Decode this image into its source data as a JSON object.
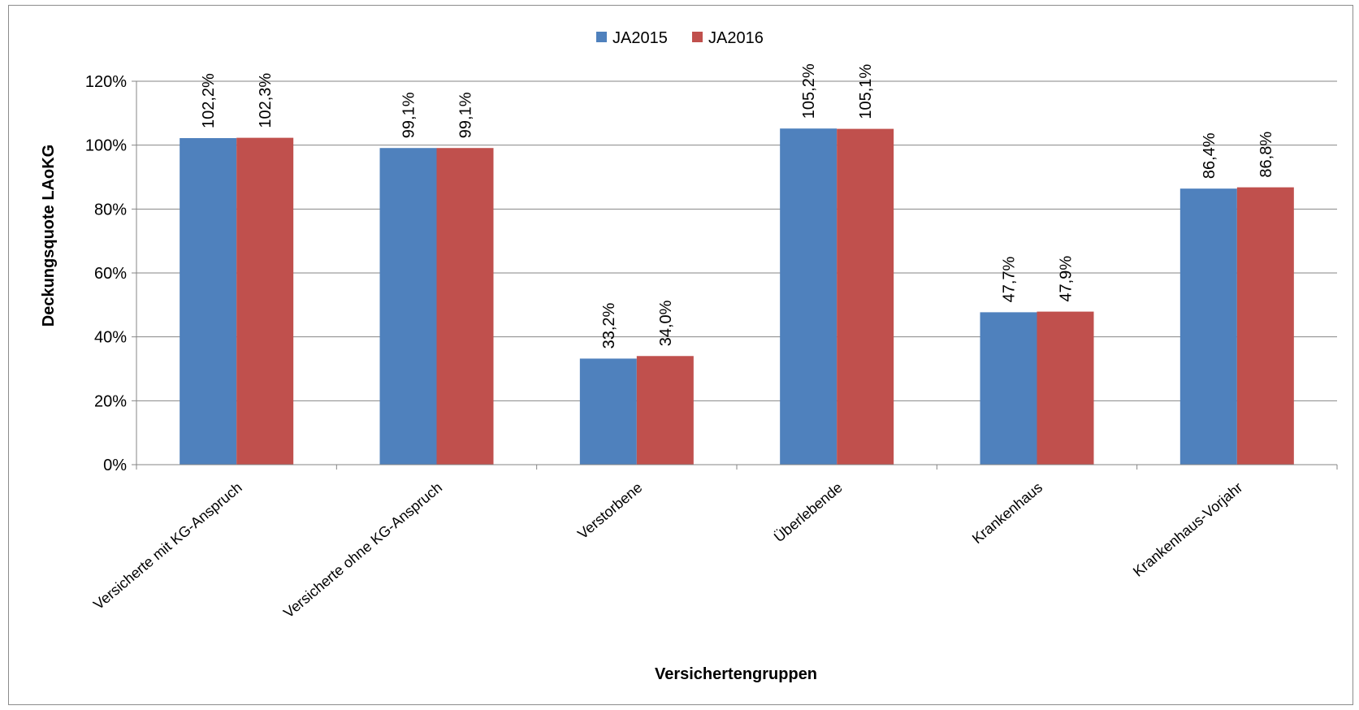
{
  "chart_data": {
    "type": "bar",
    "categories": [
      "Versicherte mit KG-Anspruch",
      "Versicherte ohne KG-Anspruch",
      "Verstorbene",
      "Überlebende",
      "Krankenhaus",
      "Krankenhaus-Vorjahr"
    ],
    "series": [
      {
        "name": "JA2015",
        "color": "#4F81BD",
        "values": [
          102.2,
          99.1,
          33.2,
          105.2,
          47.7,
          86.4
        ],
        "labels": [
          "102,2%",
          "99,1%",
          "33,2%",
          "105,2%",
          "47,7%",
          "86,4%"
        ]
      },
      {
        "name": "JA2016",
        "color": "#C0504D",
        "values": [
          102.3,
          99.1,
          34.0,
          105.1,
          47.9,
          86.8
        ],
        "labels": [
          "102,3%",
          "99,1%",
          "34,0%",
          "105,1%",
          "47,9%",
          "86,8%"
        ]
      }
    ],
    "xlabel": "Versichertengruppen",
    "ylabel": "Deckungsquote LAoKG",
    "ylim": [
      0,
      120
    ],
    "yticks": [
      0,
      20,
      40,
      60,
      80,
      100,
      120
    ],
    "ytick_labels": [
      "0%",
      "20%",
      "40%",
      "60%",
      "80%",
      "100%",
      "120%"
    ],
    "grid": true,
    "legend_position": "top-center"
  }
}
